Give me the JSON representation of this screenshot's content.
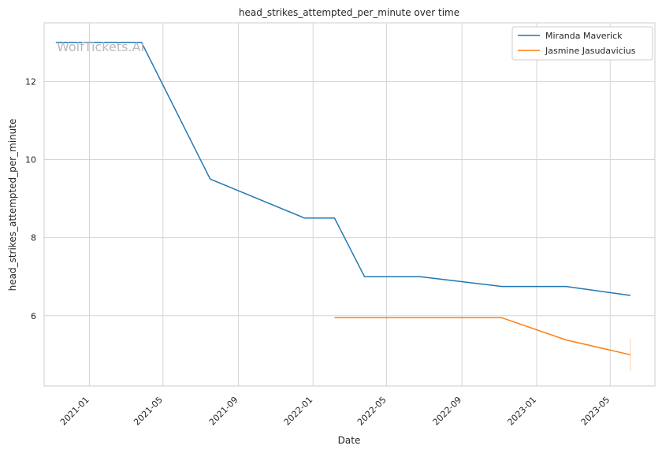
{
  "chart_data": {
    "type": "line",
    "title": "head_strikes_attempted_per_minute over time",
    "xlabel": "Date",
    "ylabel": "head_strikes_attempted_per_minute",
    "watermark": "WolfTickets.AI",
    "x_ticks": [
      "2021-01",
      "2021-05",
      "2021-09",
      "2022-01",
      "2022-05",
      "2022-09",
      "2023-01",
      "2023-05"
    ],
    "y_ticks": [
      6,
      8,
      10,
      12
    ],
    "xlim": [
      "2020-10-19",
      "2023-07-13"
    ],
    "ylim": [
      4.2,
      13.5
    ],
    "grid": true,
    "legend_position": "top-right",
    "series": [
      {
        "name": "Miranda Maverick",
        "color": "#1f77b4",
        "points": [
          {
            "x": "2020-11-07",
            "y": 13.0
          },
          {
            "x": "2021-03-27",
            "y": 13.0
          },
          {
            "x": "2021-07-17",
            "y": 9.5
          },
          {
            "x": "2021-12-18",
            "y": 8.5
          },
          {
            "x": "2022-02-05",
            "y": 8.5
          },
          {
            "x": "2022-03-26",
            "y": 7.0
          },
          {
            "x": "2022-06-25",
            "y": 7.0
          },
          {
            "x": "2022-11-05",
            "y": 6.75
          },
          {
            "x": "2023-02-18",
            "y": 6.75
          },
          {
            "x": "2023-06-03",
            "y": 6.52
          }
        ]
      },
      {
        "name": "Jasmine Jasudavicius",
        "color": "#ff7f0e",
        "points": [
          {
            "x": "2022-02-05",
            "y": 5.95
          },
          {
            "x": "2022-11-05",
            "y": 5.95
          },
          {
            "x": "2023-02-18",
            "y": 5.38
          },
          {
            "x": "2023-06-03",
            "y": 5.0
          }
        ],
        "band": {
          "x": "2023-06-03",
          "low": 4.58,
          "high": 5.42
        }
      }
    ]
  }
}
